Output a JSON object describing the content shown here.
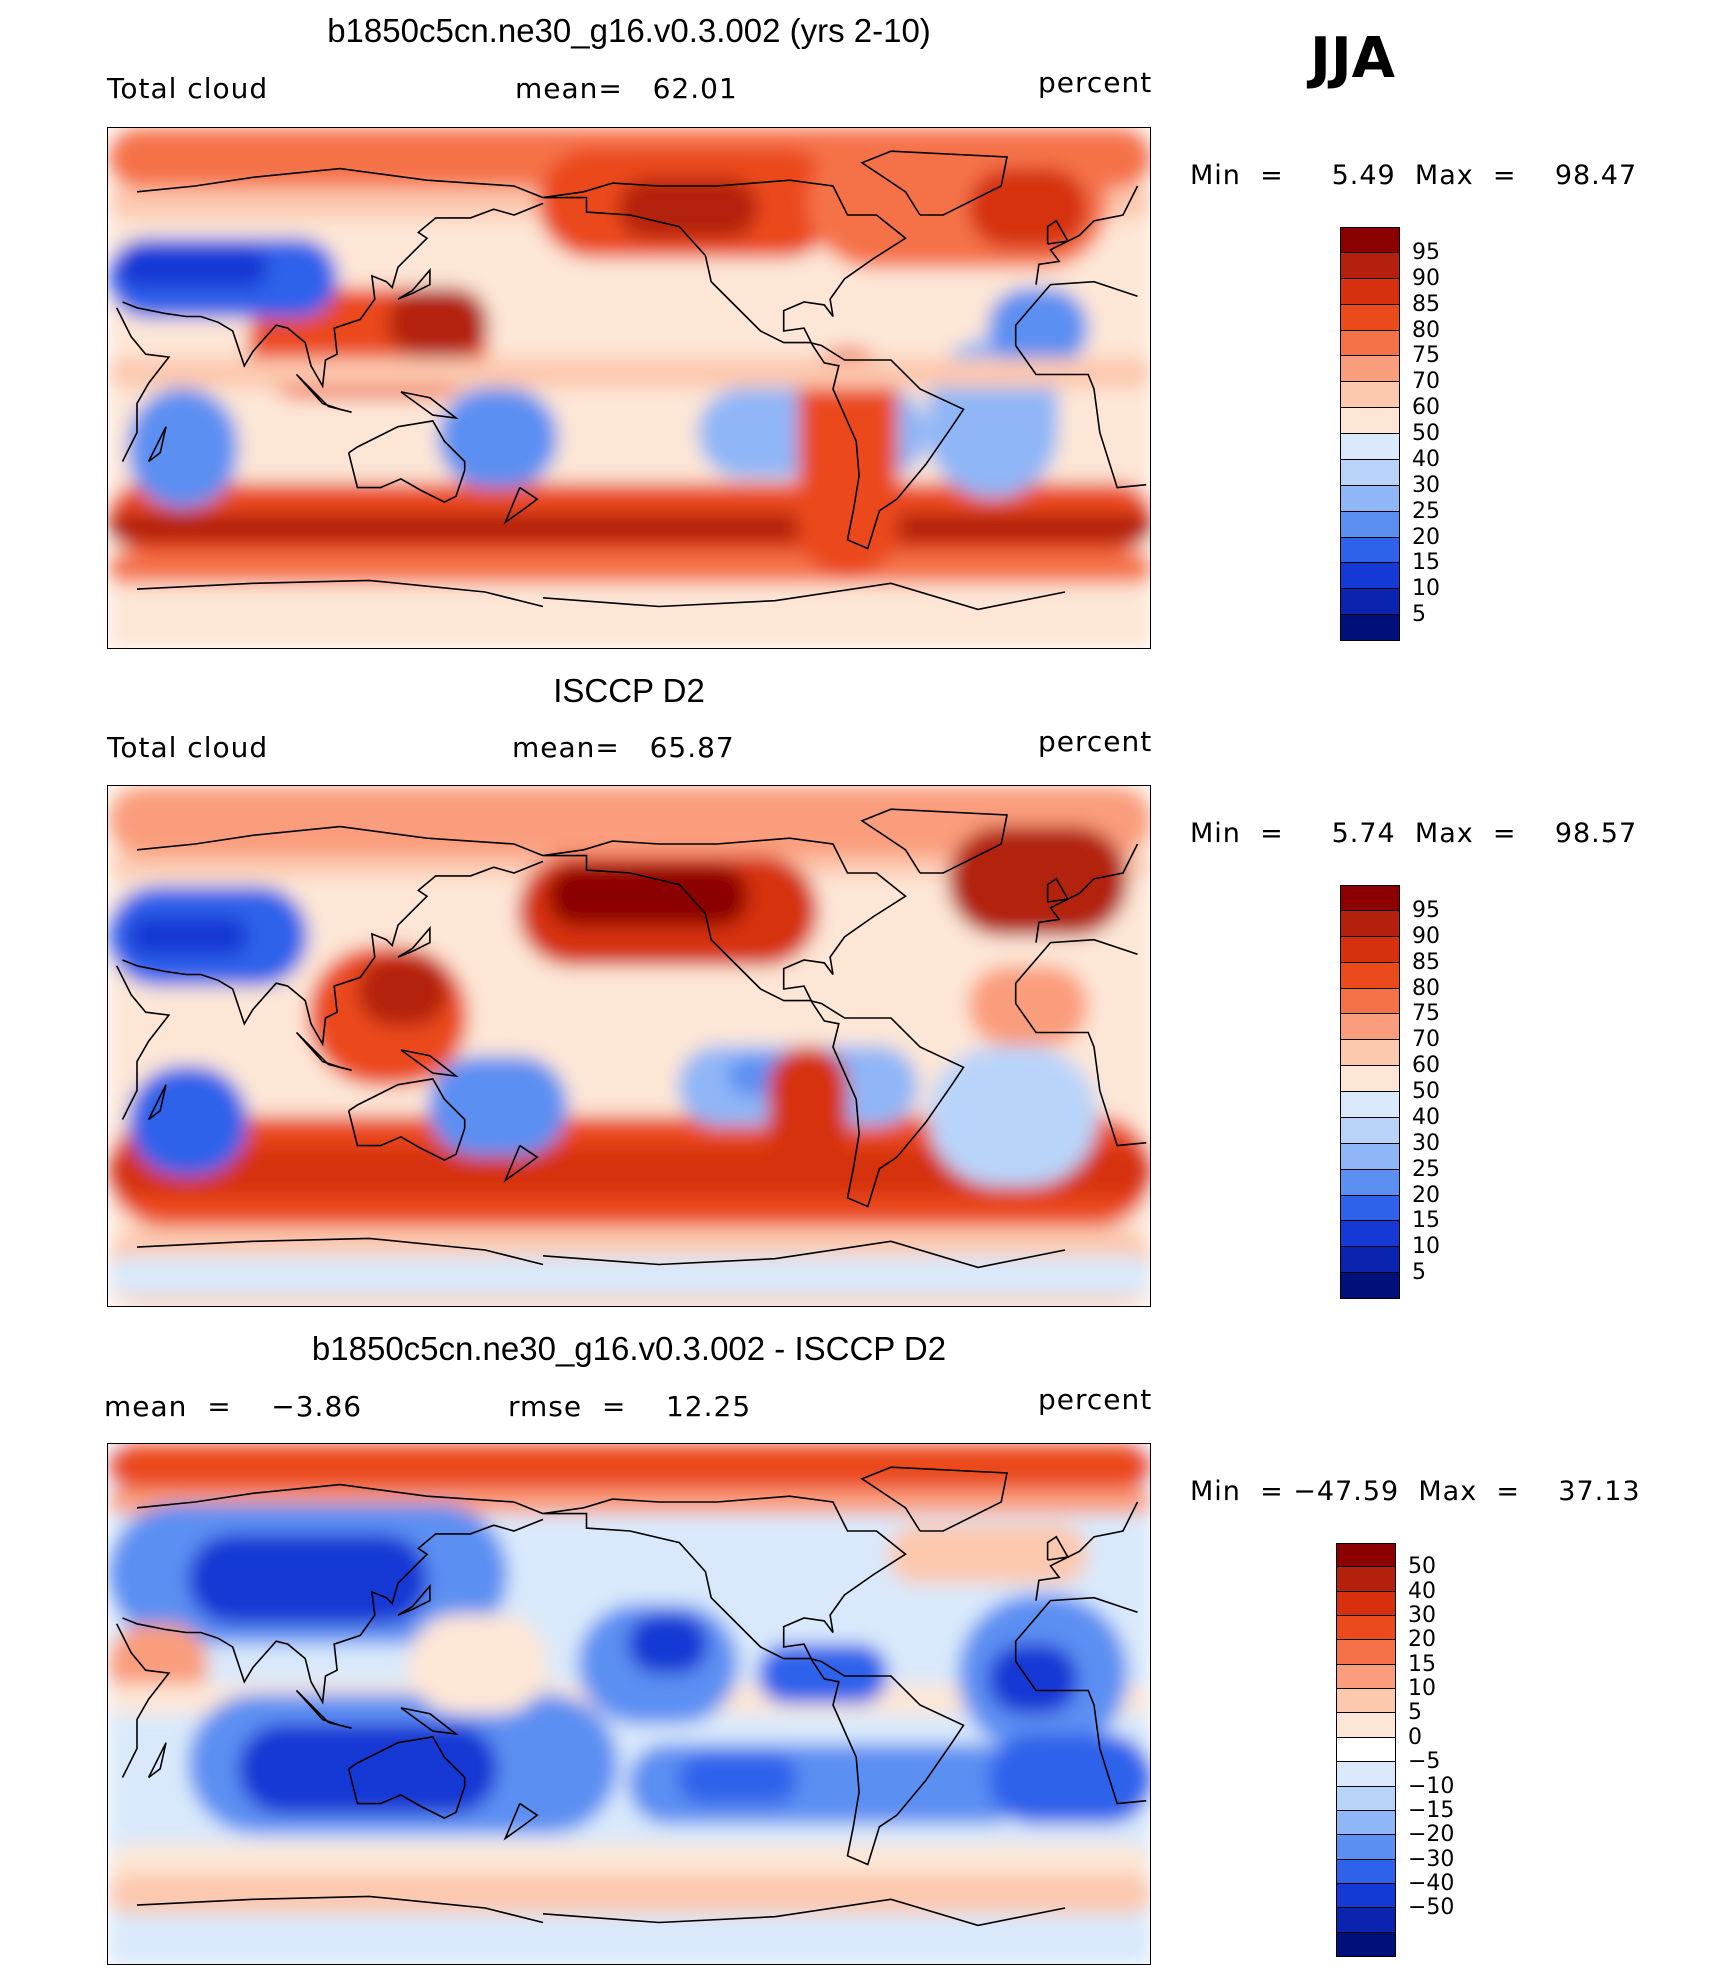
{
  "season_label": "JJA",
  "icons": [
    "world-coastline-icon"
  ],
  "panels": [
    {
      "title": "b1850c5cn.ne30_g16.v0.3.002 (yrs 2-10)",
      "left_text": "Total cloud",
      "center_text": "mean=   62.01",
      "units": "percent",
      "min_max": "Min  =     5.49  Max  =    98.47",
      "colorbar_ticks": [
        "95",
        "90",
        "85",
        "80",
        "75",
        "70",
        "60",
        "50",
        "40",
        "30",
        "25",
        "20",
        "15",
        "10",
        "5"
      ],
      "colorbar_colors": [
        "#8b0000",
        "#b3200b",
        "#d6300f",
        "#eb4a1c",
        "#f57249",
        "#fa9d7c",
        "#fcc8ae",
        "#fde6d6",
        "#d9e9fb",
        "#b9d4fa",
        "#8fb6f7",
        "#5b8ff2",
        "#2f62eb",
        "#1539d4",
        "#0b24b0",
        "#00107a"
      ],
      "field_style": "model"
    },
    {
      "title": "ISCCP D2",
      "left_text": "Total cloud",
      "center_text": "mean=   65.87",
      "units": "percent",
      "min_max": "Min  =     5.74  Max  =    98.57",
      "colorbar_ticks": [
        "95",
        "90",
        "85",
        "80",
        "75",
        "70",
        "60",
        "50",
        "40",
        "30",
        "25",
        "20",
        "15",
        "10",
        "5"
      ],
      "colorbar_colors": [
        "#8b0000",
        "#b3200b",
        "#d6300f",
        "#eb4a1c",
        "#f57249",
        "#fa9d7c",
        "#fcc8ae",
        "#fde6d6",
        "#d9e9fb",
        "#b9d4fa",
        "#8fb6f7",
        "#5b8ff2",
        "#2f62eb",
        "#1539d4",
        "#0b24b0",
        "#00107a"
      ],
      "field_style": "obs"
    },
    {
      "title": "b1850c5cn.ne30_g16.v0.3.002 - ISCCP D2",
      "left_text": "mean  =    −3.86",
      "center_text": "rmse  =    12.25",
      "units": "percent",
      "min_max": "Min  = −47.59  Max  =    37.13",
      "colorbar_ticks": [
        "50",
        "40",
        "30",
        "20",
        "15",
        "10",
        "5",
        "0",
        "−5",
        "−10",
        "−15",
        "−20",
        "−30",
        "−40",
        "−50"
      ],
      "colorbar_colors": [
        "#8b0000",
        "#b3200b",
        "#d6300f",
        "#eb4a1c",
        "#f57249",
        "#fa9d7c",
        "#fcc8ae",
        "#fde6d6",
        "#ffffff",
        "#d9e9fb",
        "#b9d4fa",
        "#8fb6f7",
        "#5b8ff2",
        "#2f62eb",
        "#1539d4",
        "#0b24b0",
        "#00107a"
      ],
      "field_style": "diff"
    }
  ]
}
